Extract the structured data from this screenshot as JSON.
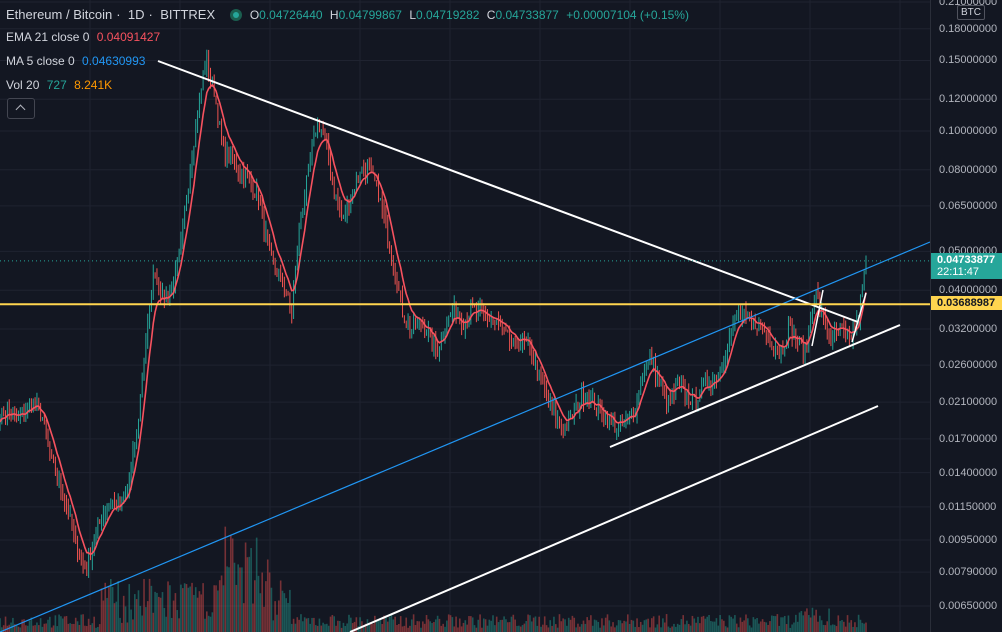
{
  "header": {
    "symbol": "Ethereum / Bitcoin",
    "interval": "1D",
    "exchange": "BITTREX",
    "ohlc": {
      "o_label": "O",
      "o": "0.04726440",
      "h_label": "H",
      "h": "0.04799867",
      "l_label": "L",
      "l": "0.04719282",
      "c_label": "C",
      "c": "0.04733877",
      "change": "+0.00007104 (+0.15%)"
    }
  },
  "indicators": {
    "ema": {
      "label": "EMA 21 close 0",
      "value": "0.04091427",
      "color": "#f7525f"
    },
    "ma": {
      "label": "MA 5 close 0",
      "value": "0.04630993",
      "color": "#2196f3"
    },
    "vol": {
      "label": "Vol 20",
      "value1": "727",
      "value2": "8.241K",
      "color1": "#26a69a",
      "color2": "#ff9800"
    }
  },
  "price_axis": {
    "currency": "BTC",
    "ticks": [
      "0.21000000",
      "0.18000000",
      "0.15000000",
      "0.12000000",
      "0.10000000",
      "0.08000000",
      "0.06500000",
      "0.05000000",
      "0.04000000",
      "0.03200000",
      "0.02600000",
      "0.02100000",
      "0.01700000",
      "0.01400000",
      "0.01150000",
      "0.00950000",
      "0.00790000",
      "0.00650000"
    ],
    "last_price": "0.04733877",
    "countdown": "22:11:47",
    "horizontal_level": "0.03688987"
  },
  "colors": {
    "background": "#131722",
    "up": "#26a69a",
    "down": "#ef5350",
    "ema": "#f7525f",
    "trendline": "#ffffff",
    "channel": "#2196f3",
    "horizontal_level": "#ffd54f",
    "last_price_badge": "#26a69a"
  },
  "chart_data": {
    "type": "line",
    "log_scale": true,
    "grid": true,
    "series": [
      {
        "name": "Ethereum / Bitcoin",
        "values": [
          0.0195,
          0.02,
          0.019,
          0.02,
          0.021,
          0.019,
          0.015,
          0.013,
          0.011,
          0.009,
          0.008,
          0.0095,
          0.011,
          0.012,
          0.0115,
          0.013,
          0.018,
          0.03,
          0.045,
          0.038,
          0.04,
          0.05,
          0.075,
          0.11,
          0.15,
          0.125,
          0.09,
          0.085,
          0.08,
          0.075,
          0.07,
          0.055,
          0.045,
          0.042,
          0.035,
          0.06,
          0.08,
          0.105,
          0.095,
          0.07,
          0.06,
          0.07,
          0.08,
          0.08,
          0.072,
          0.058,
          0.045,
          0.035,
          0.032,
          0.033,
          0.031,
          0.028,
          0.033,
          0.036,
          0.033,
          0.036,
          0.035,
          0.034,
          0.033,
          0.031,
          0.029,
          0.03,
          0.028,
          0.024,
          0.021,
          0.019,
          0.018,
          0.02,
          0.022,
          0.021,
          0.02,
          0.019,
          0.018,
          0.019,
          0.02,
          0.025,
          0.027,
          0.023,
          0.021,
          0.023,
          0.022,
          0.021,
          0.023,
          0.024,
          0.025,
          0.03,
          0.035,
          0.034,
          0.033,
          0.032,
          0.03,
          0.028,
          0.032,
          0.03,
          0.028,
          0.04,
          0.034,
          0.03,
          0.032,
          0.03,
          0.033,
          0.047
        ]
      }
    ],
    "ylim": [
      0.0063,
      0.23
    ]
  }
}
